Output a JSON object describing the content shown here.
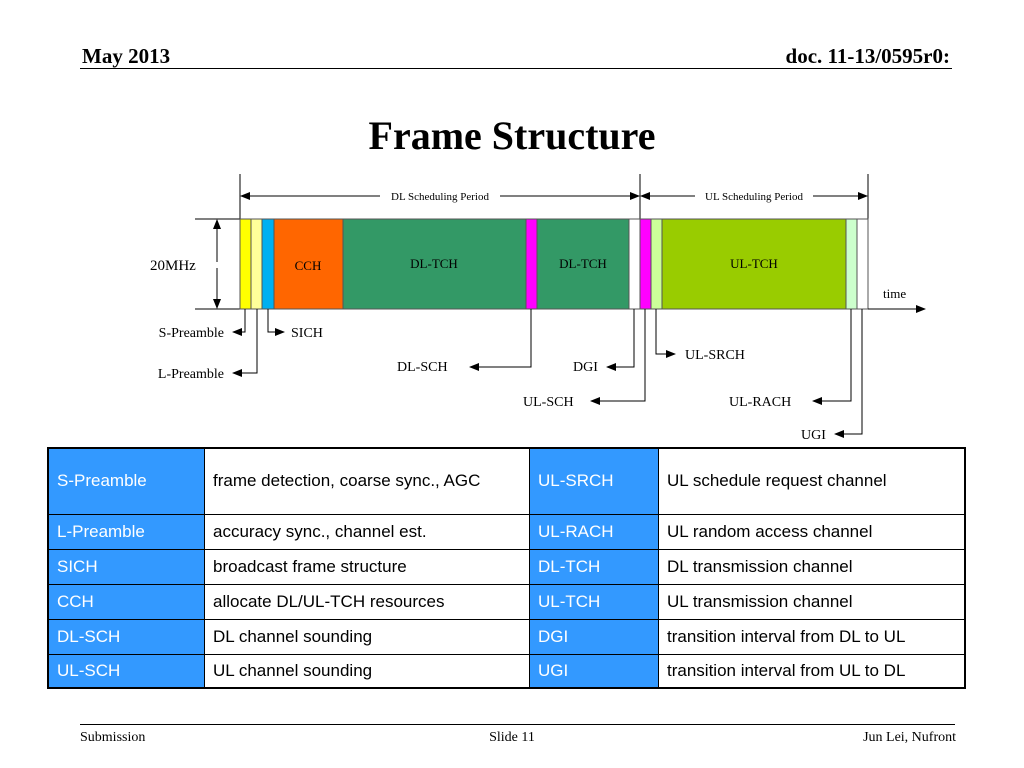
{
  "header": {
    "date": "May 2013",
    "doc": "doc. 11-13/0595r0:"
  },
  "title": "Frame Structure",
  "diagram": {
    "dl_period": "DL Scheduling Period",
    "ul_period": "UL Scheduling Period",
    "bandwidth": "20MHz",
    "time": "time",
    "blocks": {
      "cch": "CCH",
      "dl_tch_1": "DL-TCH",
      "dl_tch_2": "DL-TCH",
      "ul_tch": "UL-TCH"
    },
    "callouts": {
      "s_preamble": "S-Preamble",
      "l_preamble": "L-Preamble",
      "sich": "SICH",
      "dl_sch": "DL-SCH",
      "dgi": "DGI",
      "ul_sch": "UL-SCH",
      "ul_srch": "UL-SRCH",
      "ul_rach": "UL-RACH",
      "ugi": "UGI"
    },
    "colors": {
      "s_preamble": "#ffff00",
      "l_preamble": "#ffff99",
      "sich": "#00b0f0",
      "cch": "#ff6600",
      "dl_tch": "#339966",
      "dl_sch": "#ff00ff",
      "ul_tch": "#99cc00",
      "ul_srch_area": "#ccffcc"
    }
  },
  "table": {
    "rows": [
      [
        {
          "key": "S-Preamble",
          "desc": "frame detection, coarse sync., AGC"
        },
        {
          "key": "UL-SRCH",
          "desc": "UL schedule request channel"
        }
      ],
      [
        {
          "key": "L-Preamble",
          "desc": "accuracy sync., channel est."
        },
        {
          "key": "UL-RACH",
          "desc": "UL random access channel"
        }
      ],
      [
        {
          "key": "SICH",
          "desc": "broadcast frame structure"
        },
        {
          "key": "DL-TCH",
          "desc": "DL transmission channel"
        }
      ],
      [
        {
          "key": "CCH",
          "desc": "allocate DL/UL-TCH resources"
        },
        {
          "key": "UL-TCH",
          "desc": "UL transmission channel"
        }
      ],
      [
        {
          "key": "DL-SCH",
          "desc": "DL channel sounding"
        },
        {
          "key": "DGI",
          "desc": "transition interval from DL to UL"
        }
      ],
      [
        {
          "key": "UL-SCH",
          "desc": "UL channel sounding"
        },
        {
          "key": "UGI",
          "desc": "transition interval from UL to DL"
        }
      ]
    ]
  },
  "footer": {
    "left": "Submission",
    "center": "Slide 11",
    "right": "Jun Lei, Nufront"
  }
}
